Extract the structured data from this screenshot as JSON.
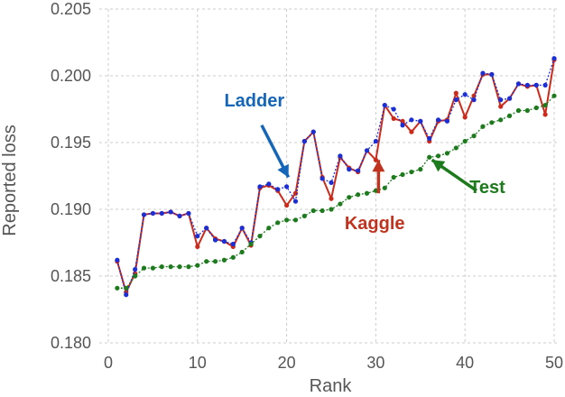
{
  "chart_data": {
    "type": "line",
    "xlabel": "Rank",
    "ylabel": "Reported loss",
    "xlim": [
      0,
      50
    ],
    "ylim": [
      0.18,
      0.205
    ],
    "x_ticks": [
      0,
      10,
      20,
      30,
      40,
      50
    ],
    "y_ticks": [
      0.18,
      0.185,
      0.19,
      0.195,
      0.2,
      0.205
    ],
    "x_tick_labels": [
      "0",
      "10",
      "20",
      "30",
      "40",
      "50"
    ],
    "y_tick_labels": [
      "0.180",
      "0.185",
      "0.190",
      "0.195",
      "0.200",
      "0.205"
    ],
    "grid": true,
    "x": [
      1,
      2,
      3,
      4,
      5,
      6,
      7,
      8,
      9,
      10,
      11,
      12,
      13,
      14,
      15,
      16,
      17,
      18,
      19,
      20,
      21,
      22,
      23,
      24,
      25,
      26,
      27,
      28,
      29,
      30,
      31,
      32,
      33,
      34,
      35,
      36,
      37,
      38,
      39,
      40,
      41,
      42,
      43,
      44,
      45,
      46,
      47,
      48,
      49,
      50
    ],
    "series": [
      {
        "key": "kaggle",
        "color": "#cc2a1a",
        "line": "solid",
        "values": [
          0.1861,
          0.1838,
          0.1852,
          0.1896,
          0.1897,
          0.1897,
          0.1898,
          0.1895,
          0.1897,
          0.1872,
          0.1886,
          0.1878,
          0.1876,
          0.1872,
          0.1886,
          0.1873,
          0.1916,
          0.1918,
          0.1914,
          0.1903,
          0.1912,
          0.1951,
          0.1958,
          0.1924,
          0.1908,
          0.1939,
          0.1931,
          0.1928,
          0.1944,
          0.1937,
          0.1978,
          0.1968,
          0.1966,
          0.1958,
          0.1966,
          0.1951,
          0.1966,
          0.1967,
          0.1987,
          0.1969,
          0.1985,
          0.2001,
          0.2001,
          0.1977,
          0.1983,
          0.1994,
          0.1992,
          0.1993,
          0.1971,
          0.2012
        ]
      },
      {
        "key": "ladder",
        "color": "#1a2fd6",
        "line": "dotted",
        "values": [
          0.1862,
          0.1836,
          0.1855,
          0.1896,
          0.1897,
          0.1897,
          0.1898,
          0.1895,
          0.1897,
          0.188,
          0.1886,
          0.1877,
          0.1876,
          0.1874,
          0.1886,
          0.1875,
          0.1917,
          0.1919,
          0.1915,
          0.1917,
          0.1906,
          0.1951,
          0.1958,
          0.1923,
          0.192,
          0.194,
          0.193,
          0.1929,
          0.1944,
          0.1951,
          0.1978,
          0.1975,
          0.1963,
          0.1967,
          0.1966,
          0.1953,
          0.1967,
          0.1966,
          0.1982,
          0.1986,
          0.1982,
          0.2002,
          0.2001,
          0.1982,
          0.1983,
          0.1994,
          0.1993,
          0.1993,
          0.1993,
          0.2013
        ]
      },
      {
        "key": "test",
        "color": "#1d7a1d",
        "line": "dotted",
        "values": [
          0.1841,
          0.1841,
          0.185,
          0.1856,
          0.1856,
          0.1857,
          0.1857,
          0.1857,
          0.1857,
          0.1858,
          0.1861,
          0.1861,
          0.1862,
          0.1864,
          0.1868,
          0.1874,
          0.188,
          0.1886,
          0.189,
          0.1892,
          0.1892,
          0.1895,
          0.1899,
          0.1899,
          0.19,
          0.1904,
          0.1909,
          0.1911,
          0.1912,
          0.1914,
          0.1916,
          0.1924,
          0.1926,
          0.1928,
          0.193,
          0.1939,
          0.194,
          0.1942,
          0.1946,
          0.1951,
          0.1955,
          0.1962,
          0.1965,
          0.1967,
          0.197,
          0.1974,
          0.1974,
          0.1976,
          0.1978,
          0.1985
        ]
      }
    ],
    "annotations": [
      {
        "text": "Ladder",
        "color": "#1565b8",
        "text_at": [
          13,
          0.1977
        ],
        "arrow_from": [
          17.2,
          0.1963
        ],
        "arrow_to": [
          20.2,
          0.1924
        ]
      },
      {
        "text": "Kaggle",
        "color": "#c0331e",
        "text_at": [
          26.5,
          0.1885
        ],
        "arrow_from": [
          30.3,
          0.1912
        ],
        "arrow_to": [
          30.3,
          0.1937
        ]
      },
      {
        "text": "Test",
        "color": "#1d7a1d",
        "text_at": [
          40.5,
          0.1912
        ],
        "arrow_from": [
          41.3,
          0.1914
        ],
        "arrow_to": [
          36.3,
          0.1937
        ]
      }
    ]
  }
}
